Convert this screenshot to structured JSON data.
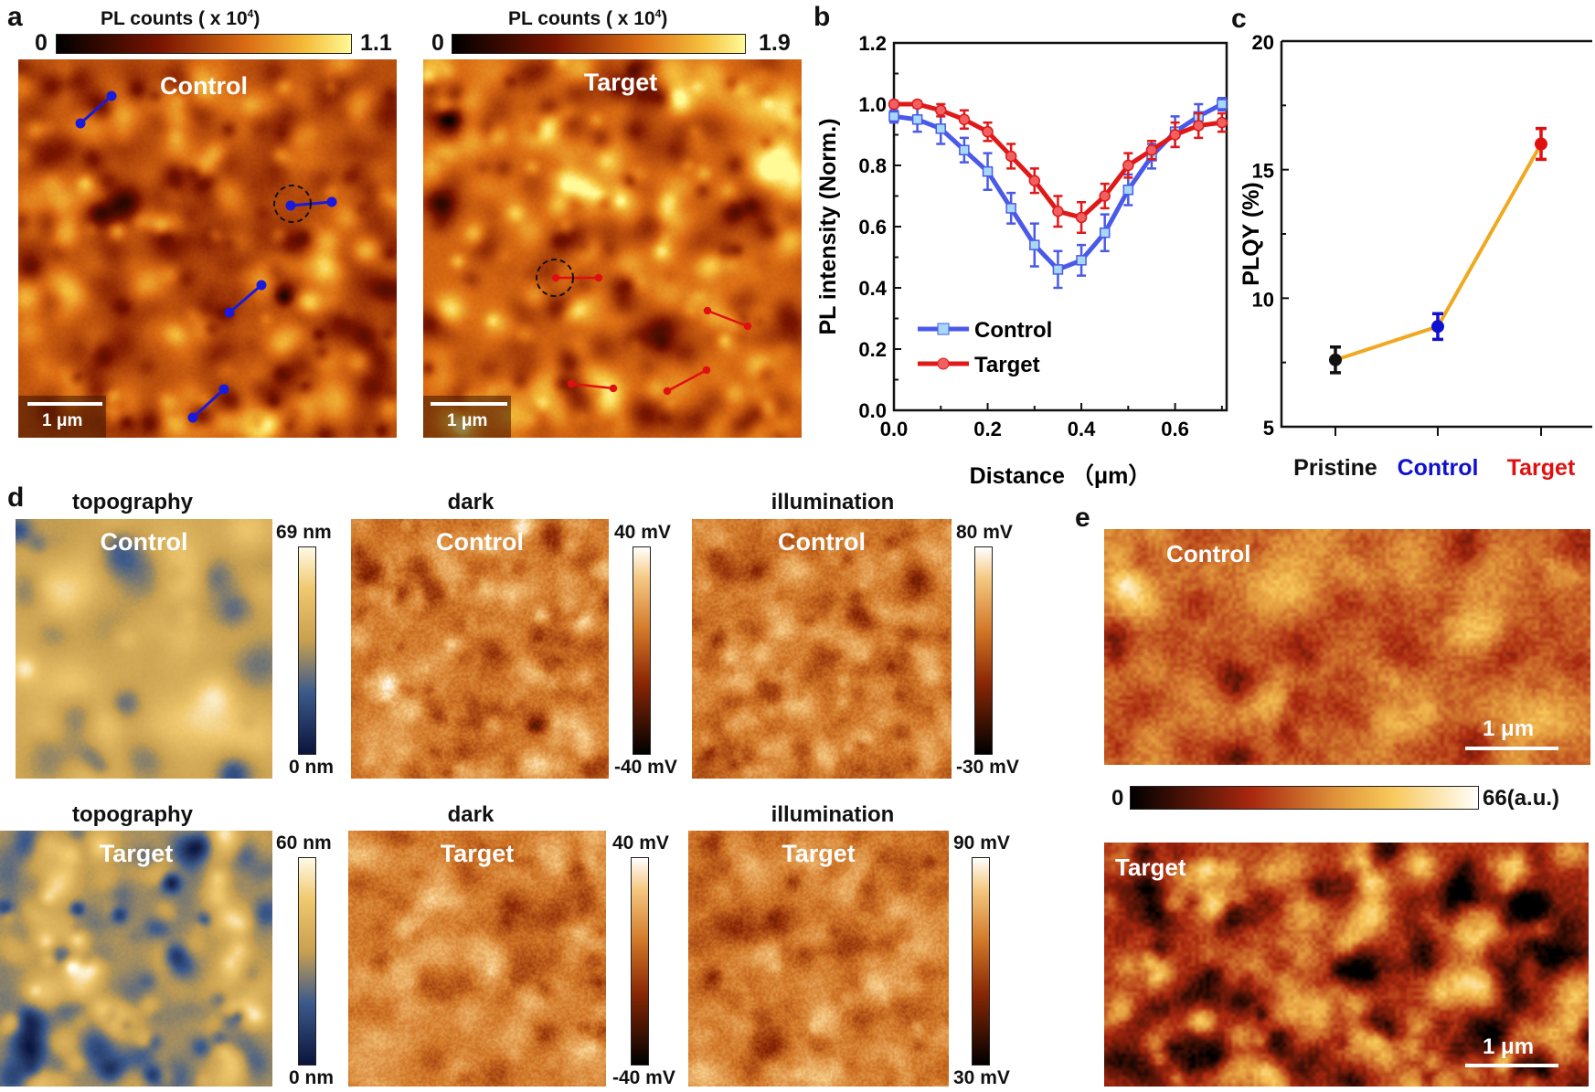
{
  "panel_labels": {
    "a": "a",
    "b": "b",
    "c": "c",
    "d": "d",
    "e": "e"
  },
  "panel_a": {
    "colorbar_title": "PL counts ( x 10",
    "colorbar_title_sup": "4",
    "colorbar_title_end": ")",
    "control": {
      "label": "Control",
      "cb_min": "0",
      "cb_max": "1.1",
      "scale_bar": "1 μm",
      "line_color": "#1a1adb"
    },
    "target": {
      "label": "Target",
      "cb_min": "0",
      "cb_max": "1.9",
      "scale_bar": "1 μm",
      "line_color": "#e01010"
    }
  },
  "panel_d": {
    "row1": {
      "sample": "Control",
      "topography": {
        "title": "topography",
        "cb_max": "69 nm",
        "cb_min": "0 nm"
      },
      "dark": {
        "title": "dark",
        "cb_max": "40 mV",
        "cb_min": "-40 mV"
      },
      "illumination": {
        "title": "illumination",
        "cb_max": "80 mV",
        "cb_min": "-30 mV"
      }
    },
    "row2": {
      "sample": "Target",
      "topography": {
        "title": "topography",
        "cb_max": "60 nm",
        "cb_min": "0 nm"
      },
      "dark": {
        "title": "dark",
        "cb_max": "40 mV",
        "cb_min": "-40 mV"
      },
      "illumination": {
        "title": "illumination",
        "cb_max": "90 mV",
        "cb_min": "30 mV"
      }
    }
  },
  "panel_e": {
    "control": {
      "label": "Control",
      "scale_bar": "1 μm"
    },
    "target": {
      "label": "Target",
      "scale_bar": "1 μm"
    },
    "cb_min": "0",
    "cb_max": "66(a.u.)"
  },
  "chart_data": [
    {
      "panel": "b",
      "type": "line",
      "xlabel": "Distance （μm）",
      "ylabel": "PL intensity (Norm.)",
      "xlim": [
        0,
        0.71
      ],
      "ylim": [
        0,
        1.2
      ],
      "xticks": [
        "0.0",
        "0.2",
        "0.4",
        "0.6"
      ],
      "yticks": [
        "0.0",
        "0.2",
        "0.4",
        "0.6",
        "0.8",
        "1.0",
        "1.2"
      ],
      "legend_position": "bottom-left",
      "x": [
        0,
        0.05,
        0.1,
        0.15,
        0.2,
        0.25,
        0.3,
        0.35,
        0.4,
        0.45,
        0.5,
        0.55,
        0.6,
        0.65,
        0.7
      ],
      "series": [
        {
          "name": "Control",
          "color": "#4a5ae8",
          "marker": "square",
          "values": [
            0.96,
            0.95,
            0.92,
            0.85,
            0.78,
            0.66,
            0.54,
            0.46,
            0.49,
            0.58,
            0.72,
            0.83,
            0.91,
            0.96,
            1.0
          ],
          "errors": [
            0.02,
            0.04,
            0.05,
            0.04,
            0.06,
            0.05,
            0.07,
            0.06,
            0.05,
            0.06,
            0.05,
            0.04,
            0.05,
            0.04,
            0.02
          ]
        },
        {
          "name": "Target",
          "color": "#e01818",
          "marker": "circle",
          "values": [
            1.0,
            1.0,
            0.98,
            0.95,
            0.91,
            0.83,
            0.75,
            0.65,
            0.63,
            0.7,
            0.8,
            0.85,
            0.9,
            0.93,
            0.94
          ],
          "errors": [
            0.01,
            0.01,
            0.02,
            0.03,
            0.03,
            0.04,
            0.04,
            0.05,
            0.05,
            0.04,
            0.04,
            0.03,
            0.04,
            0.04,
            0.03
          ]
        }
      ]
    },
    {
      "panel": "c",
      "type": "line",
      "ylabel": "PLQY (%)",
      "ylim": [
        5,
        20
      ],
      "yticks": [
        "5",
        "10",
        "15",
        "20"
      ],
      "categories": [
        "Pristine",
        "Control",
        "Target"
      ],
      "category_colors": [
        "#111111",
        "#1010d0",
        "#e01010"
      ],
      "values": [
        7.6,
        8.9,
        16.0
      ],
      "errors": [
        0.5,
        0.5,
        0.6
      ],
      "line_color": "#f0a820"
    }
  ]
}
